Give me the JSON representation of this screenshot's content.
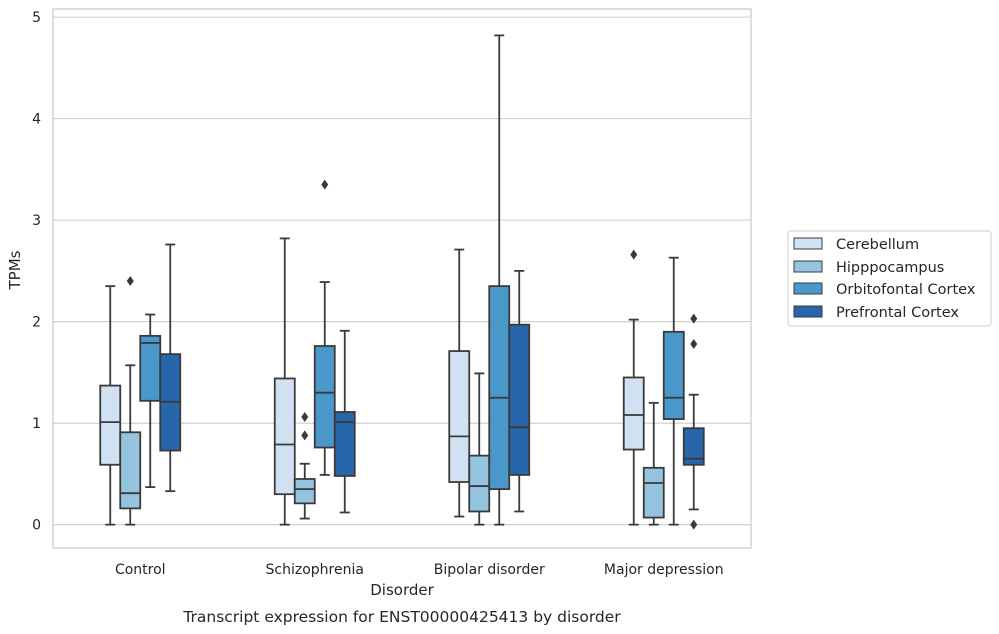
{
  "chart_data": {
    "type": "box",
    "title": "",
    "caption": "Transcript expression for ENST00000425413 by disorder",
    "xlabel": "Disorder",
    "ylabel": "TPMs",
    "ylim": [
      -0.23,
      5.08
    ],
    "yticks": [
      0,
      1,
      2,
      3,
      4,
      5
    ],
    "grid": "horizontal",
    "legend_position": "right",
    "categories": [
      "Control",
      "Schizophrenia",
      "Bipolar disorder",
      "Major depression"
    ],
    "series": [
      {
        "name": "Cerebellum",
        "color": "#d0e1f2",
        "boxes": [
          {
            "whisker_low": 0.0,
            "q1": 0.59,
            "median": 1.01,
            "q3": 1.37,
            "whisker_high": 2.35,
            "outliers": []
          },
          {
            "whisker_low": 0.0,
            "q1": 0.3,
            "median": 0.79,
            "q3": 1.44,
            "whisker_high": 2.82,
            "outliers": []
          },
          {
            "whisker_low": 0.08,
            "q1": 0.42,
            "median": 0.87,
            "q3": 1.71,
            "whisker_high": 2.71,
            "outliers": []
          },
          {
            "whisker_low": 0.0,
            "q1": 0.74,
            "median": 1.08,
            "q3": 1.45,
            "whisker_high": 2.02,
            "outliers": [
              2.66
            ]
          }
        ]
      },
      {
        "name": "Hipppocampus",
        "color": "#94c4df",
        "boxes": [
          {
            "whisker_low": 0.0,
            "q1": 0.16,
            "median": 0.31,
            "q3": 0.91,
            "whisker_high": 1.57,
            "outliers": [
              2.4
            ]
          },
          {
            "whisker_low": 0.06,
            "q1": 0.21,
            "median": 0.35,
            "q3": 0.45,
            "whisker_high": 0.6,
            "outliers": [
              0.88,
              1.06
            ]
          },
          {
            "whisker_low": 0.0,
            "q1": 0.13,
            "median": 0.38,
            "q3": 0.68,
            "whisker_high": 1.49,
            "outliers": []
          },
          {
            "whisker_low": 0.0,
            "q1": 0.07,
            "median": 0.41,
            "q3": 0.56,
            "whisker_high": 1.2,
            "outliers": []
          }
        ]
      },
      {
        "name": "Orbitofontal Cortex",
        "color": "#4a98c9",
        "boxes": [
          {
            "whisker_low": 0.37,
            "q1": 1.22,
            "median": 1.79,
            "q3": 1.86,
            "whisker_high": 2.07,
            "outliers": []
          },
          {
            "whisker_low": 0.49,
            "q1": 0.76,
            "median": 1.3,
            "q3": 1.76,
            "whisker_high": 2.39,
            "outliers": [
              3.35
            ]
          },
          {
            "whisker_low": 0.0,
            "q1": 0.35,
            "median": 1.25,
            "q3": 2.35,
            "whisker_high": 4.82,
            "outliers": []
          },
          {
            "whisker_low": 0.0,
            "q1": 1.04,
            "median": 1.25,
            "q3": 1.9,
            "whisker_high": 2.63,
            "outliers": []
          }
        ]
      },
      {
        "name": "Prefrontal Cortex",
        "color": "#2766ab",
        "boxes": [
          {
            "whisker_low": 0.33,
            "q1": 0.73,
            "median": 1.21,
            "q3": 1.68,
            "whisker_high": 2.76,
            "outliers": []
          },
          {
            "whisker_low": 0.12,
            "q1": 0.48,
            "median": 1.01,
            "q3": 1.11,
            "whisker_high": 1.91,
            "outliers": []
          },
          {
            "whisker_low": 0.13,
            "q1": 0.49,
            "median": 0.96,
            "q3": 1.97,
            "whisker_high": 2.5,
            "outliers": []
          },
          {
            "whisker_low": 0.15,
            "q1": 0.59,
            "median": 0.65,
            "q3": 0.95,
            "whisker_high": 1.28,
            "outliers": [
              0.0,
              1.78,
              2.03
            ]
          }
        ]
      }
    ]
  },
  "colors": {
    "grid": "#cccccc",
    "frame": "#c8c8c8",
    "box_edge": "#3a3a3a"
  }
}
